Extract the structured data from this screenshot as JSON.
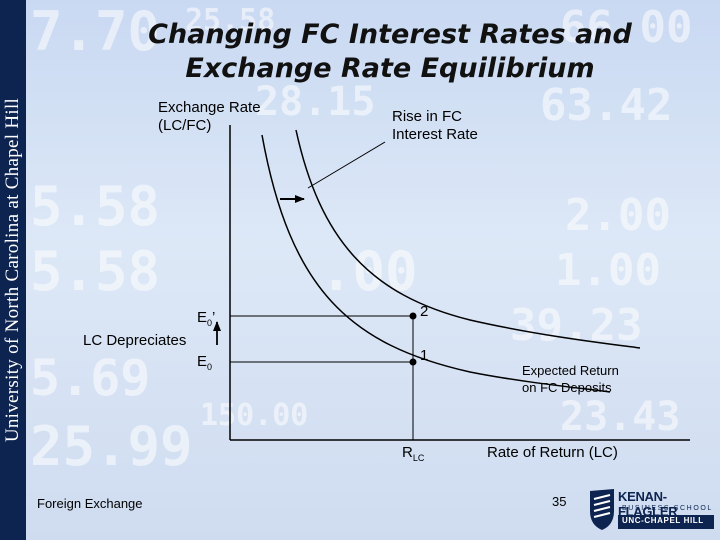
{
  "sidebar": {
    "text": "University of North Carolina at Chapel Hill"
  },
  "slide": {
    "title_line1": "Changing FC Interest Rates and",
    "title_line2": "Exchange Rate Equilibrium"
  },
  "diagram": {
    "y_axis_label_line1": "Exchange Rate",
    "y_axis_label_line2": "(LC/FC)",
    "x_axis_label": "Rate of Return (LC)",
    "shift_label_line1": "Rise in FC",
    "shift_label_line2": "Interest Rate",
    "depreciation_label": "LC Depreciates",
    "e0_prime_main": "E",
    "e0_prime_sub": "0",
    "e0_prime_mark": "’",
    "e0_main": "E",
    "e0_sub": "0",
    "rlc_main": "R",
    "rlc_sub": "LC",
    "point1_label": "1",
    "point2_label": "2",
    "curve_label_line1": "Expected Return",
    "curve_label_line2": "on FC Deposits"
  },
  "footer": {
    "left": "Foreign Exchange",
    "page_number": "35",
    "logo_name": "KENAN-FLAGLER",
    "logo_school": "BUSINESS SCHOOL",
    "logo_unc": "UNC-CHAPEL HILL"
  },
  "colors": {
    "sidebar": "#0d2350",
    "background": "#d3e0f4",
    "background_numbers": "#ffffff"
  },
  "background_numbers": [
    "7.70",
    "25.58",
    "66.00",
    "28.15",
    "63.42",
    "5.58",
    "5.58",
    "2.00",
    ".00",
    "25.99",
    "39.23",
    "150.00",
    "5.69",
    "23.43",
    "1.00"
  ]
}
